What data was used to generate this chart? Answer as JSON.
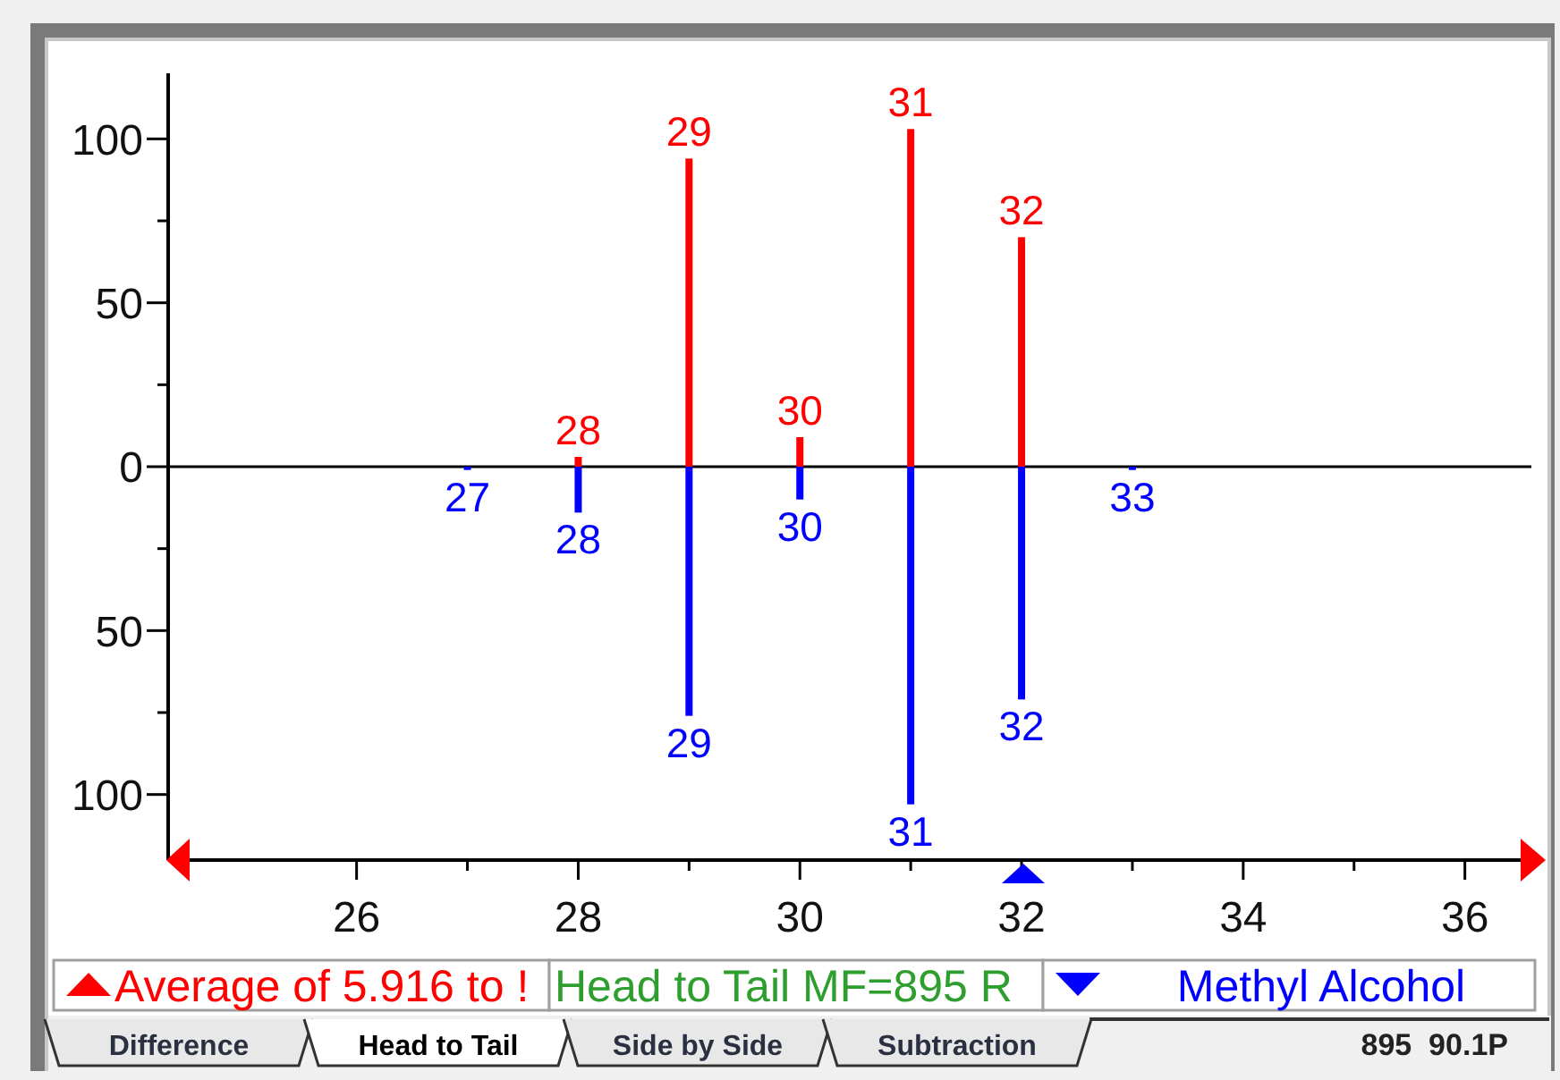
{
  "chart_data": {
    "type": "bar",
    "xlim": [
      24.3,
      36.6
    ],
    "xticks": [
      26,
      {
        "value": 27,
        "label": null
      },
      28,
      {
        "value": 29,
        "label": null
      },
      30,
      {
        "value": 31,
        "label": null
      },
      32,
      {
        "value": 33,
        "label": null
      },
      34,
      {
        "value": 35,
        "label": null
      },
      36
    ],
    "ylim": [
      -120,
      120
    ],
    "yticks": [
      {
        "value": -100,
        "label": "100"
      },
      {
        "value": -75,
        "label": null
      },
      {
        "value": -50,
        "label": "50"
      },
      {
        "value": -25,
        "label": null
      },
      0,
      {
        "value": 25,
        "label": null
      },
      50,
      {
        "value": 75,
        "label": null
      },
      100
    ],
    "series": [
      {
        "name": "Average of 5.916 to !",
        "color": "#ff0000",
        "x": [
          28,
          29,
          30,
          31,
          32
        ],
        "values": [
          3,
          94,
          9,
          103,
          70
        ]
      },
      {
        "name": "Methyl Alcohol",
        "color": "#0000ff",
        "x": [
          27,
          28,
          29,
          30,
          31,
          32,
          33
        ],
        "values": [
          -1,
          -14,
          -76,
          -10,
          -103,
          -71,
          -1
        ]
      }
    ],
    "ref_lines": [
      {
        "axis": "y",
        "value": 0
      }
    ],
    "legend": "bottom",
    "annotations": [
      "Head to Tail MF=895 R",
      "Difference",
      "Head to Tail",
      "Side by Side",
      "Subtraction",
      "895  90.1P",
      {
        "text": "28",
        "x": 28,
        "y": 3
      },
      {
        "text": "29",
        "x": 29,
        "y": 94
      },
      {
        "text": "30",
        "x": 30,
        "y": 9
      },
      {
        "text": "31",
        "x": 31,
        "y": 103
      },
      {
        "text": "32",
        "x": 32,
        "y": 70
      },
      {
        "text": "27",
        "x": 27,
        "y": -1
      },
      {
        "text": "28",
        "x": 28,
        "y": -14
      },
      {
        "text": "29",
        "x": 29,
        "y": -76
      },
      {
        "text": "30",
        "x": 30,
        "y": -10
      },
      {
        "text": "31",
        "x": 31,
        "y": -103
      },
      {
        "text": "32",
        "x": 32,
        "y": -71
      },
      {
        "text": "33",
        "x": 33,
        "y": -1
      }
    ]
  }
}
